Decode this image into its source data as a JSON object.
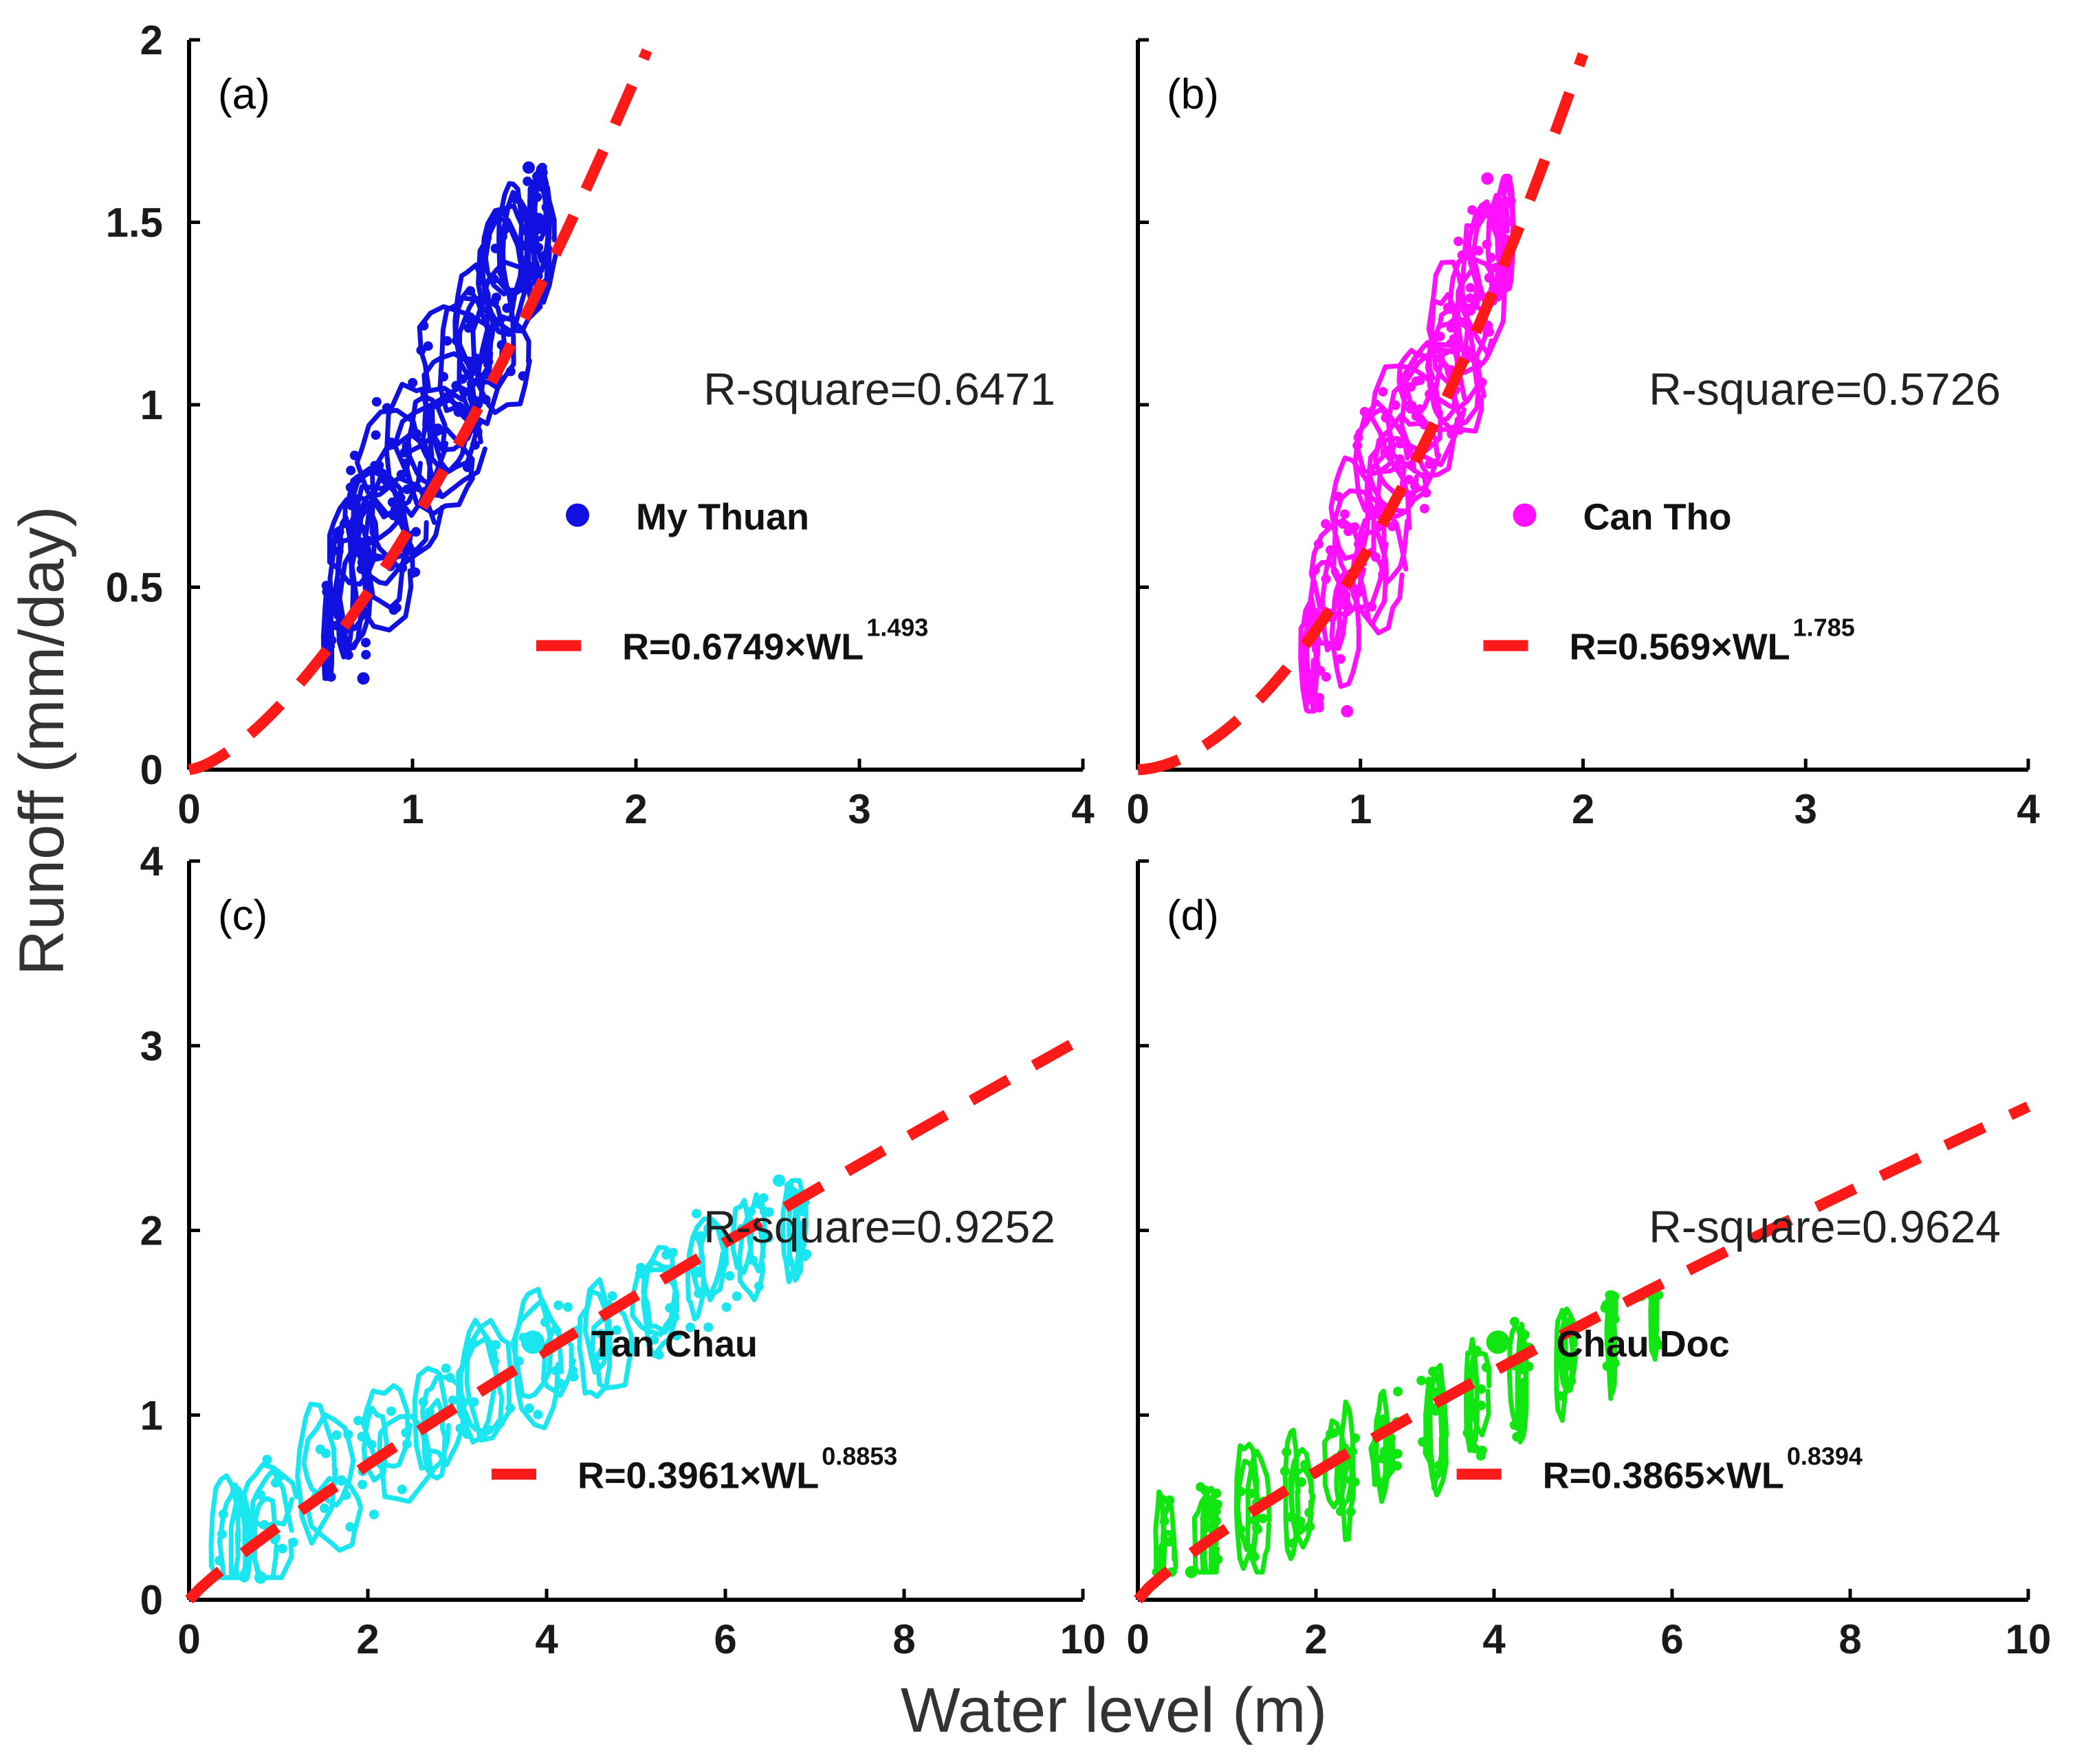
{
  "figure": {
    "ylabel": "Runoff (mm/day)",
    "xlabel": "Water level (m)"
  },
  "colors": {
    "fit": "#ff1a1a",
    "my_thuan": "#1010e0",
    "can_tho": "#ff10ff",
    "tan_chau": "#1ae6f0",
    "chau_doc": "#12e612"
  },
  "chart_data": [
    {
      "type": "scatter",
      "panel": "(a)",
      "station": "My Thuan",
      "xlim": [
        0,
        4
      ],
      "ylim": [
        0,
        2
      ],
      "xticks": [
        "0",
        "1",
        "2",
        "3",
        "4"
      ],
      "yticks": [
        "0",
        "0.5",
        "1",
        "1.5",
        "2"
      ],
      "xtick_values": [
        0,
        1,
        2,
        3,
        4
      ],
      "ytick_values": [
        0,
        0.5,
        1,
        1.5,
        2
      ],
      "r_square": "R-square=0.6471",
      "fit": {
        "a": 0.6749,
        "b": 1.493,
        "x_end": 2.05
      },
      "fit_label_main": "R=0.6749×WL",
      "fit_label_exp": "1.493",
      "color_key": "my_thuan",
      "observed": {
        "x_center": [
          0.62,
          0.72,
          0.8,
          0.88,
          0.95,
          1.03,
          1.1,
          1.18,
          1.25,
          1.32,
          1.4,
          1.47,
          1.54,
          1.58
        ],
        "half_width": [
          0.02,
          0.08,
          0.15,
          0.19,
          0.21,
          0.22,
          0.22,
          0.21,
          0.2,
          0.18,
          0.15,
          0.12,
          0.08,
          0.04
        ],
        "y_min": 0.25,
        "y_max": 1.65,
        "trend": {
          "x0": 0.62,
          "y0": 0.35,
          "x1": 1.6,
          "y1": 1.55
        }
      },
      "legend": {
        "x": 2.0,
        "y": 0.34
      }
    },
    {
      "type": "scatter",
      "panel": "(b)",
      "station": "Can Tho",
      "xlim": [
        0,
        4
      ],
      "ylim": [
        0,
        2
      ],
      "xticks": [
        "0",
        "1",
        "2",
        "3",
        "4"
      ],
      "yticks": [],
      "xtick_values": [
        0,
        1,
        2,
        3,
        4
      ],
      "ytick_values": [
        0,
        0.5,
        1,
        1.5,
        2
      ],
      "r_square": "R-square=0.5726",
      "fit": {
        "a": 0.569,
        "b": 1.785,
        "x_end": 2.0
      },
      "fit_label_main": "R=0.569×WL",
      "fit_label_exp": "1.785",
      "color_key": "can_tho",
      "observed": {
        "x_center": [
          0.78,
          0.86,
          0.94,
          1.02,
          1.1,
          1.18,
          1.26,
          1.34,
          1.42,
          1.5,
          1.58,
          1.64
        ],
        "half_width": [
          0.04,
          0.12,
          0.17,
          0.2,
          0.21,
          0.21,
          0.2,
          0.18,
          0.15,
          0.12,
          0.08,
          0.04
        ],
        "y_min": 0.16,
        "y_max": 1.62,
        "trend": {
          "x0": 0.78,
          "y0": 0.3,
          "x1": 1.65,
          "y1": 1.5
        }
      },
      "legend": {
        "x": 2.0,
        "y": 0.34
      }
    },
    {
      "type": "scatter",
      "panel": "(c)",
      "station": "Tan Chau",
      "xlim": [
        0,
        10
      ],
      "ylim": [
        0,
        4
      ],
      "xticks": [
        "0",
        "2",
        "4",
        "6",
        "8",
        "10"
      ],
      "yticks": [
        "0",
        "1",
        "2",
        "3",
        "4"
      ],
      "xtick_values": [
        0,
        2,
        4,
        6,
        8,
        10
      ],
      "ytick_values": [
        0,
        1,
        2,
        3,
        4
      ],
      "r_square": "R-square=0.9252",
      "fit": {
        "a": 0.3961,
        "b": 0.8853,
        "x_end": 10
      },
      "fit_label_main": "R=0.3961×WL",
      "fit_label_exp": "0.8853",
      "color_key": "tan_chau",
      "observed": {
        "x_center": [
          0.5,
          1.0,
          1.6,
          2.2,
          2.8,
          3.4,
          4.0,
          4.6,
          5.2,
          5.8,
          6.3,
          6.8
        ],
        "half_width": [
          0.2,
          0.3,
          0.35,
          0.35,
          0.3,
          0.3,
          0.3,
          0.3,
          0.28,
          0.25,
          0.2,
          0.12
        ],
        "y_min": 0.12,
        "y_max": 2.27,
        "trend": {
          "x0": 0.4,
          "y0": 0.28,
          "x1": 6.8,
          "y1": 2.05
        }
      },
      "legend": {
        "x": 4.5,
        "y": 0.68
      }
    },
    {
      "type": "scatter",
      "panel": "(d)",
      "station": "Chau Doc",
      "xlim": [
        0,
        10
      ],
      "ylim": [
        0,
        4
      ],
      "xticks": [
        "0",
        "2",
        "4",
        "6",
        "8",
        "10"
      ],
      "yticks": [],
      "xtick_values": [
        0,
        2,
        4,
        6,
        8,
        10
      ],
      "ytick_values": [
        0,
        1,
        2,
        3,
        4
      ],
      "r_square": "R-square=0.9624",
      "fit": {
        "a": 0.3865,
        "b": 0.8394,
        "x_end": 10
      },
      "fit_label_main": "R=0.3865×WL",
      "fit_label_exp": "0.8394",
      "color_key": "chau_doc",
      "observed": {
        "x_center": [
          0.3,
          0.8,
          1.3,
          1.8,
          2.3,
          2.8,
          3.3,
          3.8,
          4.3,
          4.8,
          5.3,
          5.8
        ],
        "half_width": [
          0.1,
          0.15,
          0.15,
          0.15,
          0.15,
          0.14,
          0.12,
          0.12,
          0.1,
          0.09,
          0.07,
          0.05
        ],
        "y_min": 0.15,
        "y_max": 1.65,
        "trend": {
          "x0": 0.2,
          "y0": 0.2,
          "x1": 5.85,
          "y1": 1.58
        }
      },
      "legend": {
        "x": 4.7,
        "y": 0.68
      }
    }
  ]
}
